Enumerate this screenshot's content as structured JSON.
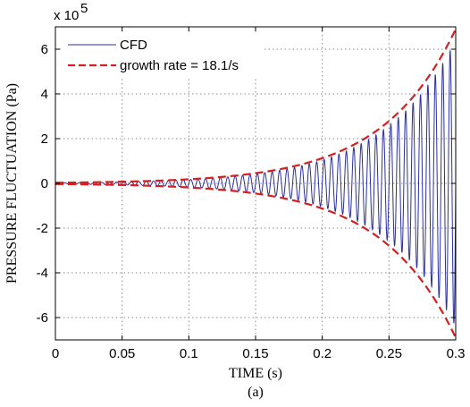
{
  "chart_data": {
    "type": "line",
    "xlabel": "TIME  (s)",
    "ylabel": "PRESSURE  FLUCTUATION  (Pa)",
    "y_multiplier": "x 10",
    "y_multiplier_exponent": "5",
    "xlim": [
      0,
      0.3
    ],
    "ylim": [
      -7,
      7
    ],
    "x_ticks": [
      0,
      0.05,
      0.1,
      0.15,
      0.2,
      0.25,
      0.3
    ],
    "x_tick_labels": [
      "0",
      "0.05",
      "0.1",
      "0.15",
      "0.2",
      "0.25",
      "0.3"
    ],
    "y_ticks": [
      -6,
      -4,
      -2,
      0,
      2,
      4,
      6
    ],
    "y_tick_labels": [
      "-6",
      "-4",
      "-2",
      "0",
      "2",
      "4",
      "6"
    ],
    "grid": true,
    "legend_position": "top-left",
    "caption": "(a)",
    "series": [
      {
        "name": "CFD",
        "style": "solid",
        "color": "#2b2fa0",
        "description_values": {
          "x": [
            0,
            0.05,
            0.1,
            0.15,
            0.2,
            0.25,
            0.3
          ],
          "envelope": [
            0.03,
            0.07,
            0.18,
            0.45,
            1.1,
            2.6,
            6.4
          ]
        }
      },
      {
        "name": "growth rate = 18.1/s",
        "style": "dashed",
        "color": "#d42020",
        "x": [
          0,
          0.05,
          0.1,
          0.15,
          0.2,
          0.25,
          0.3
        ],
        "upper": [
          0.03,
          0.074,
          0.184,
          0.456,
          1.13,
          2.79,
          6.9
        ],
        "lower": [
          -0.03,
          -0.074,
          -0.184,
          -0.456,
          -1.13,
          -2.79,
          -6.9
        ]
      }
    ]
  }
}
